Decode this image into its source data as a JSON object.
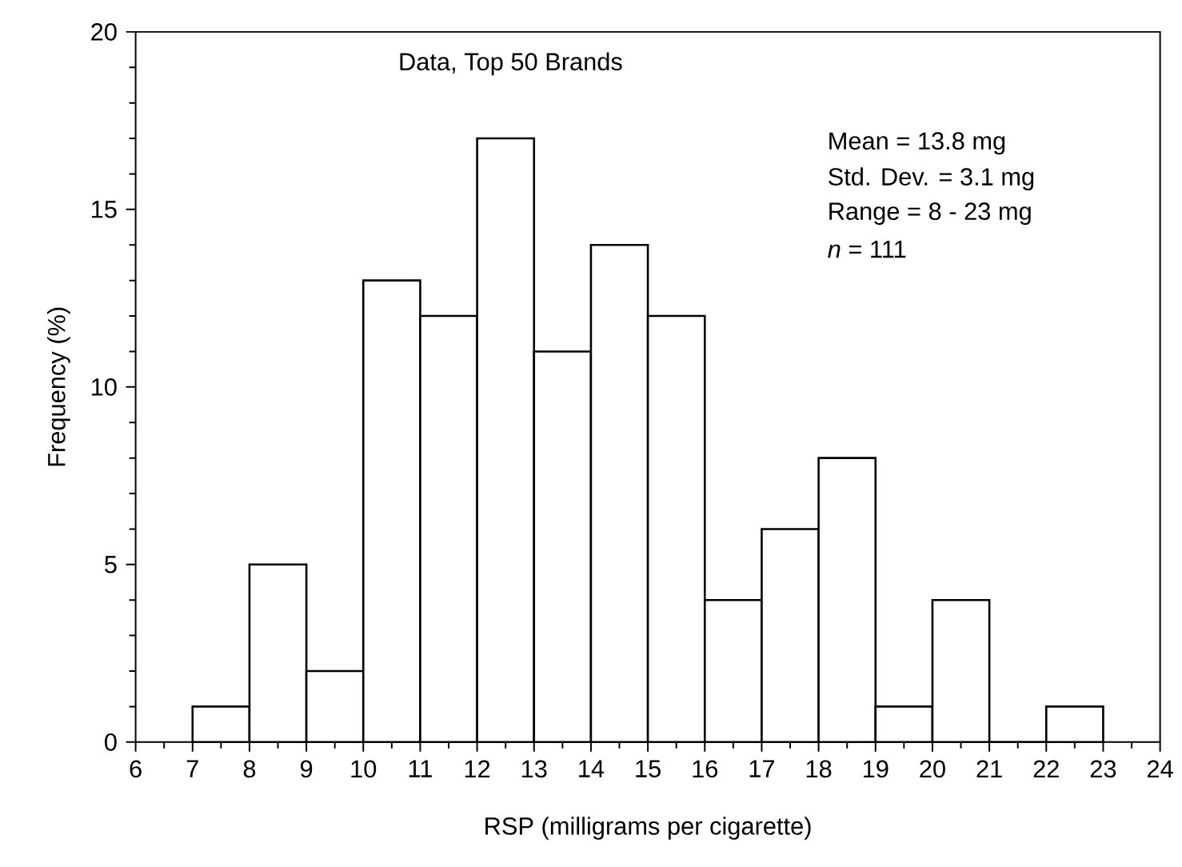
{
  "chart_data": {
    "type": "histogram",
    "title": "Data, Top 50 Brands",
    "xlabel": "RSP (milligrams per cigarette)",
    "ylabel": "Frequency (%)",
    "bins": [
      7,
      8,
      9,
      10,
      11,
      12,
      13,
      14,
      15,
      16,
      17,
      18,
      19,
      20,
      21,
      22,
      23
    ],
    "values": [
      1,
      5,
      2,
      13,
      12,
      17,
      11,
      14,
      12,
      4,
      6,
      8,
      1,
      4,
      0,
      1
    ],
    "xlim": [
      6,
      24
    ],
    "ylim": [
      0,
      20
    ],
    "xticks": [
      6,
      7,
      8,
      9,
      10,
      11,
      12,
      13,
      14,
      15,
      16,
      17,
      18,
      19,
      20,
      21,
      22,
      23,
      24
    ],
    "yticks": [
      0,
      5,
      10,
      15,
      20
    ],
    "annotations": [
      "Mean = 13.8 mg",
      "Std. Dev. = 3.1 mg",
      "Range = 8 - 23 mg",
      "*n* = 111"
    ]
  }
}
